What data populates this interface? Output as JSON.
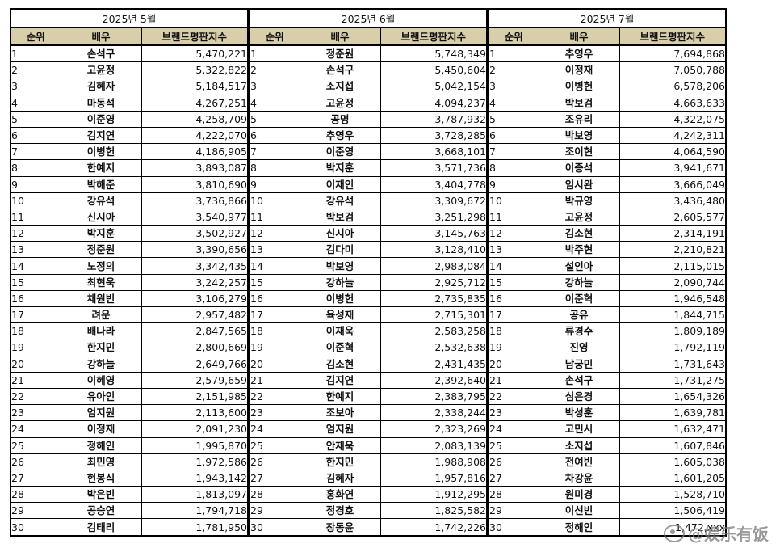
{
  "header": {
    "rank_label": "순위",
    "actor_label": "배우",
    "score_label": "브랜드평판지수"
  },
  "months": [
    {
      "title": "2025년 5월",
      "rows": [
        {
          "rank": "1",
          "actor": "손석구",
          "score": "5,470,221"
        },
        {
          "rank": "2",
          "actor": "고윤정",
          "score": "5,322,822"
        },
        {
          "rank": "3",
          "actor": "김혜자",
          "score": "5,184,517"
        },
        {
          "rank": "4",
          "actor": "마동석",
          "score": "4,267,251"
        },
        {
          "rank": "5",
          "actor": "이준영",
          "score": "4,258,709"
        },
        {
          "rank": "6",
          "actor": "김지연",
          "score": "4,222,070"
        },
        {
          "rank": "7",
          "actor": "이병헌",
          "score": "4,186,905"
        },
        {
          "rank": "8",
          "actor": "한예지",
          "score": "3,893,087"
        },
        {
          "rank": "9",
          "actor": "박해준",
          "score": "3,810,690"
        },
        {
          "rank": "10",
          "actor": "강유석",
          "score": "3,736,866"
        },
        {
          "rank": "11",
          "actor": "신시아",
          "score": "3,540,977"
        },
        {
          "rank": "12",
          "actor": "박지훈",
          "score": "3,502,927"
        },
        {
          "rank": "13",
          "actor": "정준원",
          "score": "3,390,656"
        },
        {
          "rank": "14",
          "actor": "노정의",
          "score": "3,342,435"
        },
        {
          "rank": "15",
          "actor": "최현욱",
          "score": "3,242,257"
        },
        {
          "rank": "16",
          "actor": "채원빈",
          "score": "3,106,279"
        },
        {
          "rank": "17",
          "actor": "려운",
          "score": "2,957,482"
        },
        {
          "rank": "18",
          "actor": "배나라",
          "score": "2,847,565"
        },
        {
          "rank": "19",
          "actor": "한지민",
          "score": "2,800,669"
        },
        {
          "rank": "20",
          "actor": "강하늘",
          "score": "2,649,766"
        },
        {
          "rank": "21",
          "actor": "이혜영",
          "score": "2,579,659"
        },
        {
          "rank": "22",
          "actor": "유아인",
          "score": "2,151,985"
        },
        {
          "rank": "23",
          "actor": "엄지원",
          "score": "2,113,600"
        },
        {
          "rank": "24",
          "actor": "이정재",
          "score": "2,091,230"
        },
        {
          "rank": "25",
          "actor": "정해인",
          "score": "1,995,870"
        },
        {
          "rank": "26",
          "actor": "최민영",
          "score": "1,972,586"
        },
        {
          "rank": "27",
          "actor": "현봉식",
          "score": "1,943,142"
        },
        {
          "rank": "28",
          "actor": "박은빈",
          "score": "1,813,097"
        },
        {
          "rank": "29",
          "actor": "공승연",
          "score": "1,794,718"
        },
        {
          "rank": "30",
          "actor": "김태리",
          "score": "1,781,950"
        }
      ]
    },
    {
      "title": "2025년 6월",
      "rows": [
        {
          "rank": "1",
          "actor": "정준원",
          "score": "5,748,349"
        },
        {
          "rank": "2",
          "actor": "손석구",
          "score": "5,450,604"
        },
        {
          "rank": "3",
          "actor": "소지섭",
          "score": "5,042,154"
        },
        {
          "rank": "4",
          "actor": "고윤정",
          "score": "4,094,237"
        },
        {
          "rank": "5",
          "actor": "공명",
          "score": "3,787,932"
        },
        {
          "rank": "6",
          "actor": "추영우",
          "score": "3,728,285"
        },
        {
          "rank": "7",
          "actor": "이준영",
          "score": "3,668,101"
        },
        {
          "rank": "8",
          "actor": "박지훈",
          "score": "3,571,736"
        },
        {
          "rank": "9",
          "actor": "이재인",
          "score": "3,404,778"
        },
        {
          "rank": "10",
          "actor": "강유석",
          "score": "3,309,672"
        },
        {
          "rank": "11",
          "actor": "박보검",
          "score": "3,251,298"
        },
        {
          "rank": "12",
          "actor": "신시아",
          "score": "3,145,763"
        },
        {
          "rank": "13",
          "actor": "김다미",
          "score": "3,128,410"
        },
        {
          "rank": "14",
          "actor": "박보영",
          "score": "2,983,084"
        },
        {
          "rank": "15",
          "actor": "강하늘",
          "score": "2,925,712"
        },
        {
          "rank": "16",
          "actor": "이병헌",
          "score": "2,735,835"
        },
        {
          "rank": "17",
          "actor": "육성재",
          "score": "2,715,301"
        },
        {
          "rank": "18",
          "actor": "이재욱",
          "score": "2,583,258"
        },
        {
          "rank": "19",
          "actor": "이준혁",
          "score": "2,532,638"
        },
        {
          "rank": "20",
          "actor": "김소현",
          "score": "2,431,435"
        },
        {
          "rank": "21",
          "actor": "김지연",
          "score": "2,392,640"
        },
        {
          "rank": "22",
          "actor": "한예지",
          "score": "2,383,795"
        },
        {
          "rank": "23",
          "actor": "조보아",
          "score": "2,338,244"
        },
        {
          "rank": "24",
          "actor": "엄지원",
          "score": "2,323,269"
        },
        {
          "rank": "25",
          "actor": "안재욱",
          "score": "2,083,139"
        },
        {
          "rank": "26",
          "actor": "한지민",
          "score": "1,988,908"
        },
        {
          "rank": "27",
          "actor": "김혜자",
          "score": "1,957,816"
        },
        {
          "rank": "28",
          "actor": "홍화연",
          "score": "1,912,295"
        },
        {
          "rank": "29",
          "actor": "정경호",
          "score": "1,825,582"
        },
        {
          "rank": "30",
          "actor": "장동윤",
          "score": "1,742,226"
        }
      ]
    },
    {
      "title": "2025년 7월",
      "rows": [
        {
          "rank": "1",
          "actor": "추영우",
          "score": "7,694,868"
        },
        {
          "rank": "2",
          "actor": "이정재",
          "score": "7,050,788"
        },
        {
          "rank": "3",
          "actor": "이병헌",
          "score": "6,578,206"
        },
        {
          "rank": "4",
          "actor": "박보검",
          "score": "4,663,633"
        },
        {
          "rank": "5",
          "actor": "조유리",
          "score": "4,322,075"
        },
        {
          "rank": "6",
          "actor": "박보영",
          "score": "4,242,311"
        },
        {
          "rank": "7",
          "actor": "조이현",
          "score": "4,064,590"
        },
        {
          "rank": "8",
          "actor": "이종석",
          "score": "3,941,671"
        },
        {
          "rank": "9",
          "actor": "임시완",
          "score": "3,666,049"
        },
        {
          "rank": "10",
          "actor": "박규영",
          "score": "3,436,480"
        },
        {
          "rank": "11",
          "actor": "고윤정",
          "score": "2,605,577"
        },
        {
          "rank": "12",
          "actor": "김소현",
          "score": "2,314,191"
        },
        {
          "rank": "13",
          "actor": "박주현",
          "score": "2,210,821"
        },
        {
          "rank": "14",
          "actor": "설인아",
          "score": "2,115,015"
        },
        {
          "rank": "15",
          "actor": "강하늘",
          "score": "2,090,744"
        },
        {
          "rank": "16",
          "actor": "이준혁",
          "score": "1,946,548"
        },
        {
          "rank": "17",
          "actor": "공유",
          "score": "1,844,715"
        },
        {
          "rank": "18",
          "actor": "류경수",
          "score": "1,809,189"
        },
        {
          "rank": "19",
          "actor": "진영",
          "score": "1,792,119"
        },
        {
          "rank": "20",
          "actor": "남궁민",
          "score": "1,731,643"
        },
        {
          "rank": "21",
          "actor": "손석구",
          "score": "1,731,275"
        },
        {
          "rank": "22",
          "actor": "심은경",
          "score": "1,654,326"
        },
        {
          "rank": "23",
          "actor": "박성훈",
          "score": "1,639,781"
        },
        {
          "rank": "24",
          "actor": "고민시",
          "score": "1,632,471"
        },
        {
          "rank": "25",
          "actor": "소지섭",
          "score": "1,607,846"
        },
        {
          "rank": "26",
          "actor": "전여빈",
          "score": "1,605,038"
        },
        {
          "rank": "27",
          "actor": "차강윤",
          "score": "1,601,205"
        },
        {
          "rank": "28",
          "actor": "원미경",
          "score": "1,528,710"
        },
        {
          "rank": "29",
          "actor": "이선빈",
          "score": "1,506,419"
        },
        {
          "rank": "30",
          "actor": "정해인",
          "score": "1,472,xxx"
        }
      ]
    }
  ],
  "watermark": {
    "text": "@娱乐有饭"
  }
}
